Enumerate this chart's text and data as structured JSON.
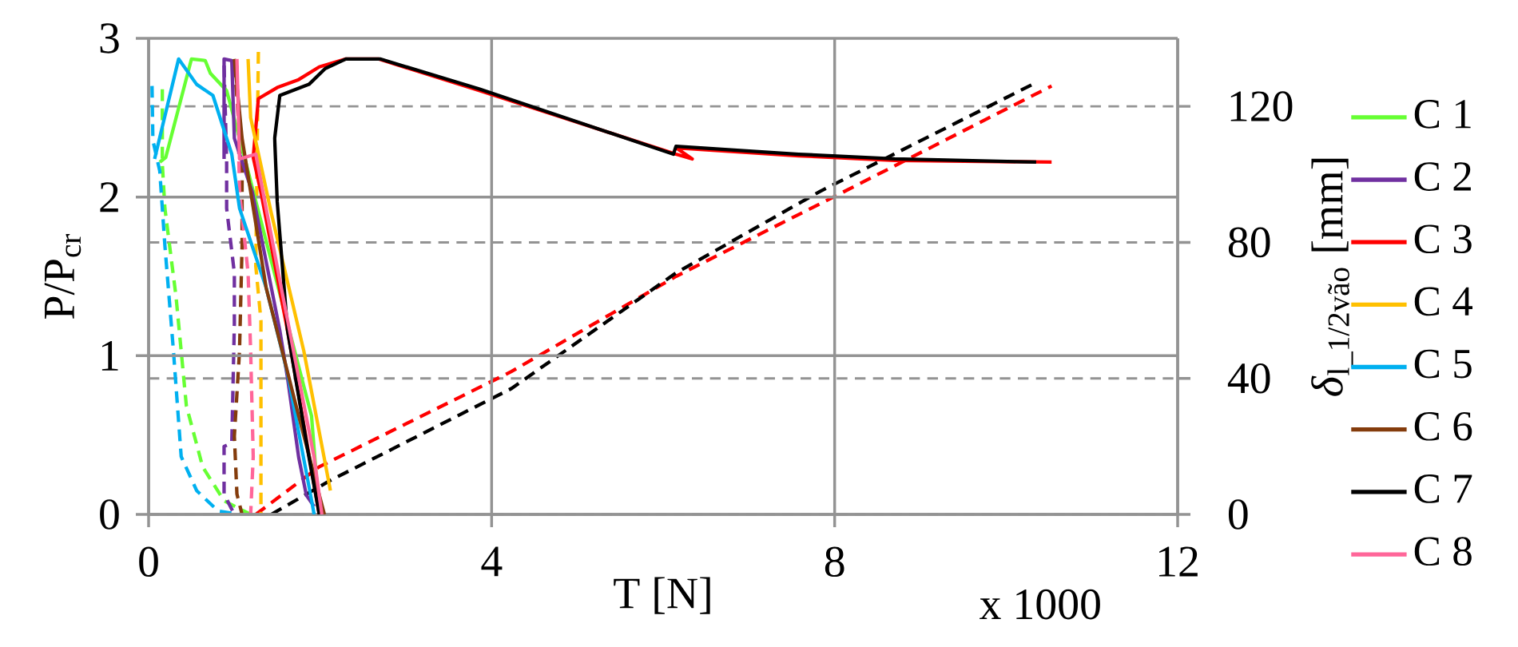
{
  "chart_data": {
    "type": "line",
    "xlabel": "T [N]",
    "ylabel": "P/P$_{cr}$",
    "y2label": "*δ*$_{l_1/2vão}$ [mm]",
    "annotations": [
      "x 1000"
    ],
    "xlim": [
      0,
      12
    ],
    "xticks": [
      0,
      4,
      8,
      12
    ],
    "ylim": [
      0,
      3
    ],
    "yticks": [
      0,
      1,
      2,
      3
    ],
    "y2lim": [
      0,
      140
    ],
    "y2ticks": [
      0,
      40,
      80,
      120
    ],
    "grid": true,
    "legend": "right",
    "marker": "none",
    "series": [
      {
        "name": "C 1",
        "color": "#66ff33",
        "line_style": "solid",
        "x": [
          0.13,
          0.2,
          0.5,
          0.66,
          0.72,
          0.91,
          1.06,
          1.9,
          1.99
        ],
        "values": [
          2.22,
          2.25,
          2.87,
          2.86,
          2.78,
          2.67,
          2.37,
          0.62,
          0
        ]
      },
      {
        "name": "C 2",
        "color": "#7030a0",
        "line_style": "solid",
        "x": [
          0.88,
          0.88,
          0.97,
          1.0,
          1.21,
          1.53,
          1.62,
          1.75,
          1.84,
          1.93
        ],
        "values": [
          2.24,
          2.87,
          2.86,
          2.37,
          2.03,
          1.16,
          0.86,
          0.36,
          0.12,
          0.05
        ]
      },
      {
        "name": "C 3",
        "color": "#ff0000",
        "line_style": "solid",
        "x": [
          1.99,
          1.62,
          1.31,
          1.22,
          1.28,
          1.5,
          1.75,
          1.99,
          2.3,
          2.68,
          3.86,
          6.15,
          6.34,
          6.15,
          7.58,
          8.7,
          10.53
        ],
        "values": [
          0,
          1.16,
          2.03,
          2.25,
          2.62,
          2.69,
          2.74,
          2.82,
          2.87,
          2.87,
          2.67,
          2.27,
          2.24,
          2.31,
          2.26,
          2.23,
          2.22
        ]
      },
      {
        "name": "C 4",
        "color": "#ffc000",
        "line_style": "solid",
        "x": [
          1.16,
          1.19,
          1.43,
          1.81,
          2.12
        ],
        "values": [
          2.87,
          2.5,
          1.9,
          1.03,
          0.15
        ]
      },
      {
        "name": "C 5",
        "color": "#00b0f0",
        "line_style": "solid",
        "x": [
          0.07,
          0.35,
          0.56,
          0.75,
          0.97,
          1.06,
          1.37,
          1.62,
          1.9,
          1.93
        ],
        "values": [
          2.24,
          2.87,
          2.71,
          2.64,
          2.27,
          1.93,
          1.43,
          0.89,
          0.09,
          0
        ]
      },
      {
        "name": "C 6",
        "color": "#843c0c",
        "line_style": "solid",
        "x": [
          1.0,
          1.09,
          1.37,
          1.75,
          2.05
        ],
        "values": [
          2.87,
          2.37,
          1.43,
          0.62,
          0
        ]
      },
      {
        "name": "C 7",
        "color": "#000000",
        "line_style": "solid",
        "x": [
          1.99,
          1.87,
          1.62,
          1.5,
          1.47,
          1.53,
          1.87,
          2.06,
          2.3,
          2.7,
          3.86,
          6.12,
          6.15,
          7.58,
          8.7,
          10.35
        ],
        "values": [
          0,
          0.36,
          1.16,
          1.97,
          2.37,
          2.64,
          2.71,
          2.81,
          2.87,
          2.87,
          2.68,
          2.27,
          2.32,
          2.27,
          2.24,
          2.22
        ]
      },
      {
        "name": "C 8",
        "color": "#ff6699",
        "line_style": "solid",
        "x": [
          1.03,
          1.06,
          1.25,
          1.5,
          1.93,
          2.02
        ],
        "values": [
          2.87,
          2.24,
          2.27,
          1.56,
          0.36,
          0
        ]
      },
      {
        "color": "#66ff33",
        "line_style": "dashed",
        "axis": "y2",
        "x": [
          0.16,
          0.16,
          0.19,
          0.32,
          0.44,
          0.63,
          0.88,
          1.19
        ],
        "values": [
          125,
          103,
          90,
          64,
          32,
          14,
          4,
          0
        ]
      },
      {
        "color": "#7030a0",
        "line_style": "dashed",
        "axis": "y2",
        "x": [
          0.88,
          0.91,
          0.91,
          1.0,
          1.0,
          0.97,
          0.88,
          0.88,
          1.0
        ],
        "values": [
          132,
          104,
          90,
          71,
          56,
          21,
          20,
          6,
          0
        ]
      },
      {
        "color": "#ff0000",
        "line_style": "dashed",
        "axis": "y2",
        "x": [
          1.25,
          1.99,
          4.23,
          6.15,
          7.96,
          10.53
        ],
        "values": [
          0,
          14,
          42,
          70,
          93,
          126
        ]
      },
      {
        "color": "#ffc000",
        "line_style": "dashed",
        "axis": "y2",
        "x": [
          1.28,
          1.25,
          1.31,
          1.31
        ],
        "values": [
          136,
          73,
          57,
          0
        ]
      },
      {
        "color": "#00b0f0",
        "line_style": "dashed",
        "axis": "y2",
        "x": [
          0.04,
          0.05,
          0.13,
          0.19,
          0.29,
          0.38,
          0.56,
          0.81,
          1.06
        ],
        "values": [
          126,
          110,
          101,
          79,
          48,
          17,
          7,
          1,
          0
        ]
      },
      {
        "color": "#843c0c",
        "line_style": "dashed",
        "axis": "y2",
        "x": [
          1.0,
          1.09,
          1.09,
          1.06,
          1.0,
          1.03,
          1.09
        ],
        "values": [
          132,
          103,
          79,
          48,
          23,
          6,
          0
        ]
      },
      {
        "color": "#000000",
        "line_style": "dashed",
        "axis": "y2",
        "x": [
          1.43,
          2.12,
          4.23,
          6.15,
          7.83,
          10.35
        ],
        "values": [
          0,
          10,
          37,
          71,
          95,
          127
        ]
      },
      {
        "color": "#ff6699",
        "line_style": "dashed",
        "axis": "y2",
        "x": [
          1.03,
          1.06,
          1.16,
          1.19,
          1.22,
          1.19
        ],
        "values": [
          132,
          95,
          71,
          48,
          17,
          0
        ]
      }
    ]
  }
}
